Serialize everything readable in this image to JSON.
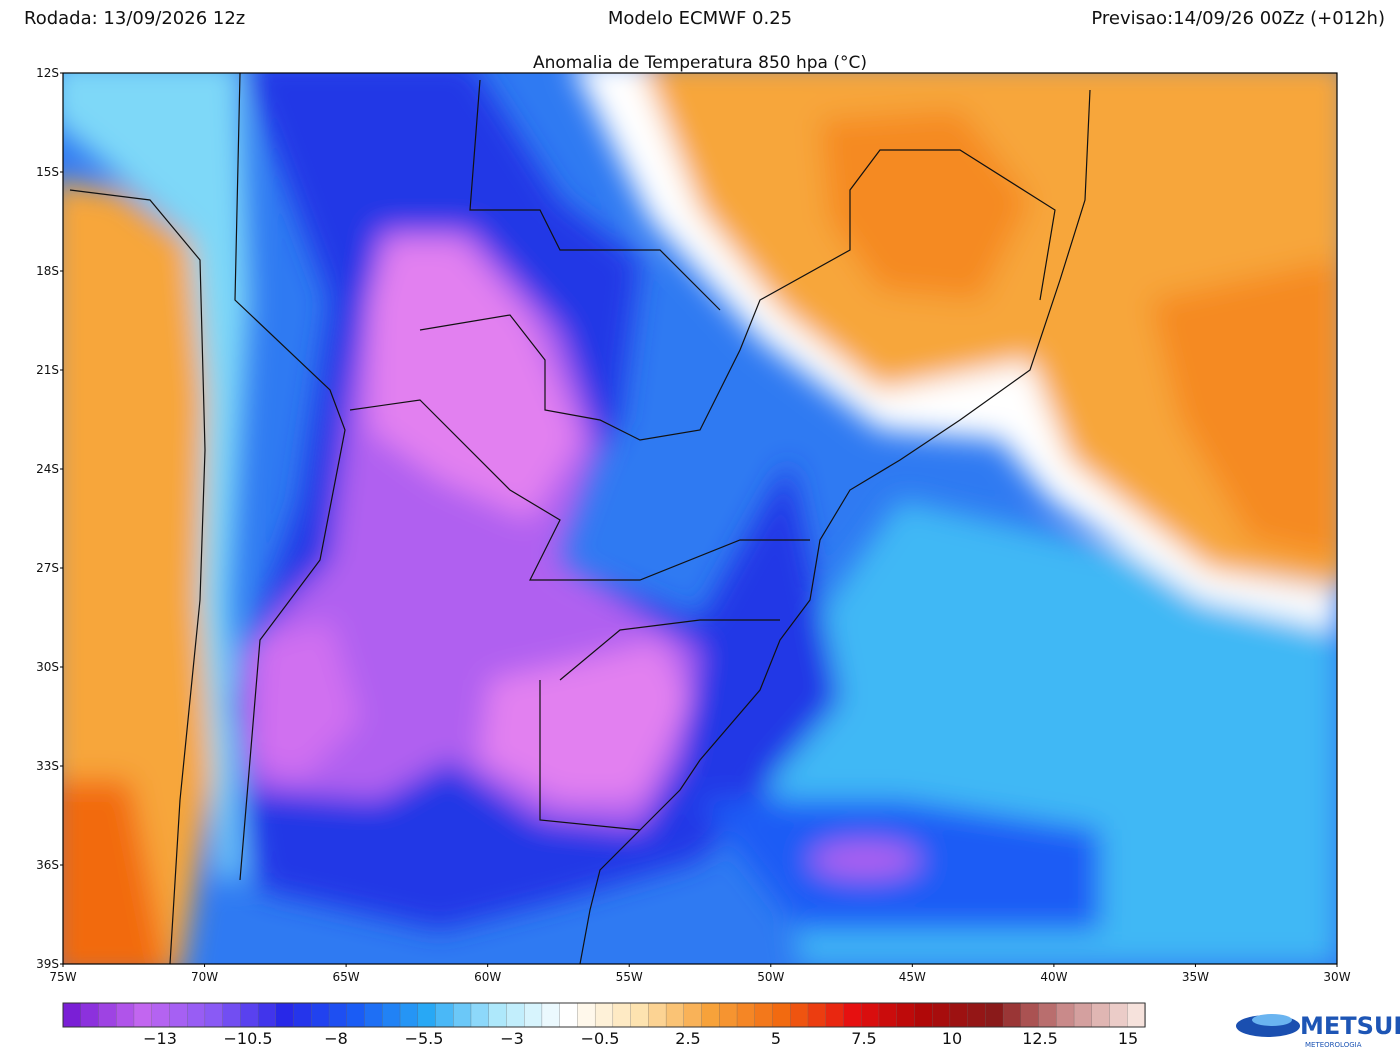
{
  "header": {
    "run": "Rodada: 13/09/2026 12z",
    "model": "Modelo ECMWF 0.25",
    "forecast": "Previsao:14/09/26 00Zz (+012h)",
    "title": "Anomalia de Temperatura 850 hpa (°C)"
  },
  "map": {
    "lat_labels": [
      "12S",
      "15S",
      "18S",
      "21S",
      "24S",
      "27S",
      "30S",
      "33S",
      "36S",
      "39S"
    ],
    "lon_labels": [
      "75W",
      "70W",
      "65W",
      "60W",
      "55W",
      "50W",
      "45W",
      "40W",
      "35W",
      "30W"
    ]
  },
  "colorbar": {
    "labels": [
      "−13",
      "−10.5",
      "−8",
      "−5.5",
      "−3",
      "−0.5",
      "2.5",
      "5",
      "7.5",
      "10",
      "12.5",
      "15"
    ],
    "colors": [
      "#7a1fd6",
      "#c266f0",
      "#8a5af5",
      "#2828e8",
      "#1a5cf5",
      "#28a8f5",
      "#aee8fb",
      "#ffffff",
      "#fde3b0",
      "#f7a23a",
      "#f26a10",
      "#e61010",
      "#b00808",
      "#8a1a1a",
      "#c98a8a",
      "#f6e2dc"
    ]
  },
  "logo": {
    "name": "METSUL",
    "tagline": "METEOROLOGIA"
  }
}
